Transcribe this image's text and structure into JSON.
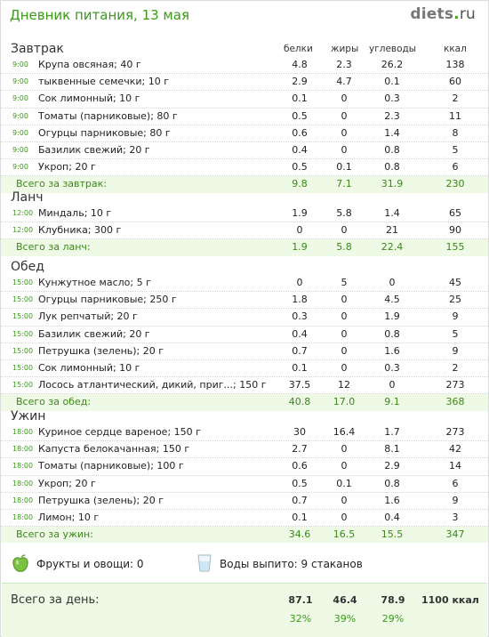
{
  "header": {
    "title": "Дневник питания, 13 мая",
    "logo_main": "diets",
    "logo_dot": ".",
    "logo_tld": "ru"
  },
  "columns": {
    "protein": "белки",
    "fat": "жиры",
    "carbs": "углеводы",
    "kcal": "ккал"
  },
  "sections": [
    {
      "title": "Завтрак",
      "items": [
        {
          "time": "9:00",
          "name": "Крупа овсяная; 40 г",
          "p": "4.8",
          "f": "2.3",
          "c": "26.2",
          "k": "138"
        },
        {
          "time": "9:00",
          "name": "тыквенные семечки; 10 г",
          "p": "2.9",
          "f": "4.7",
          "c": "0.1",
          "k": "60"
        },
        {
          "time": "9:00",
          "name": "Сок лимонный; 10 г",
          "p": "0.1",
          "f": "0",
          "c": "0.3",
          "k": "2"
        },
        {
          "time": "9:00",
          "name": "Томаты (парниковые); 80 г",
          "p": "0.5",
          "f": "0",
          "c": "2.3",
          "k": "11"
        },
        {
          "time": "9:00",
          "name": "Огурцы парниковые; 80 г",
          "p": "0.6",
          "f": "0",
          "c": "1.4",
          "k": "8"
        },
        {
          "time": "9:00",
          "name": "Базилик свежий; 20 г",
          "p": "0.4",
          "f": "0",
          "c": "0.8",
          "k": "5"
        },
        {
          "time": "9:00",
          "name": "Укроп; 20 г",
          "p": "0.5",
          "f": "0.1",
          "c": "0.8",
          "k": "6"
        }
      ],
      "total": {
        "label": "Всего за завтрак:",
        "p": "9.8",
        "f": "7.1",
        "c": "31.9",
        "k": "230"
      }
    },
    {
      "title": "Ланч",
      "items": [
        {
          "time": "12:00",
          "name": "Миндаль; 10 г",
          "p": "1.9",
          "f": "5.8",
          "c": "1.4",
          "k": "65"
        },
        {
          "time": "12:00",
          "name": "Клубника; 300 г",
          "p": "0",
          "f": "0",
          "c": "21",
          "k": "90"
        }
      ],
      "total": {
        "label": "Всего за ланч:",
        "p": "1.9",
        "f": "5.8",
        "c": "22.4",
        "k": "155"
      }
    },
    {
      "title": "Обед",
      "items": [
        {
          "time": "15:00",
          "name": "Кунжутное масло; 5 г",
          "p": "0",
          "f": "5",
          "c": "0",
          "k": "45"
        },
        {
          "time": "15:00",
          "name": "Огурцы парниковые; 250 г",
          "p": "1.8",
          "f": "0",
          "c": "4.5",
          "k": "25"
        },
        {
          "time": "15:00",
          "name": "Лук репчатый; 20 г",
          "p": "0.3",
          "f": "0",
          "c": "1.9",
          "k": "9"
        },
        {
          "time": "15:00",
          "name": "Базилик свежий; 20 г",
          "p": "0.4",
          "f": "0",
          "c": "0.8",
          "k": "5"
        },
        {
          "time": "15:00",
          "name": "Петрушка (зелень); 20 г",
          "p": "0.7",
          "f": "0",
          "c": "1.6",
          "k": "9"
        },
        {
          "time": "15:00",
          "name": "Сок лимонный; 10 г",
          "p": "0.1",
          "f": "0",
          "c": "0.3",
          "k": "2"
        },
        {
          "time": "15:00",
          "name": "Лосось атлантический, дикий, приг...; 150 г",
          "p": "37.5",
          "f": "12",
          "c": "0",
          "k": "273"
        }
      ],
      "total": {
        "label": "Всего за обед:",
        "p": "40.8",
        "f": "17.0",
        "c": "9.1",
        "k": "368"
      }
    },
    {
      "title": "Ужин",
      "items": [
        {
          "time": "18:00",
          "name": "Куриное сердце вареное; 150 г",
          "p": "30",
          "f": "16.4",
          "c": "1.7",
          "k": "273"
        },
        {
          "time": "18:00",
          "name": "Капуста белокачанная; 150 г",
          "p": "2.7",
          "f": "0",
          "c": "8.1",
          "k": "42"
        },
        {
          "time": "18:00",
          "name": "Томаты (парниковые); 100 г",
          "p": "0.6",
          "f": "0",
          "c": "2.9",
          "k": "14"
        },
        {
          "time": "18:00",
          "name": "Укроп; 20 г",
          "p": "0.5",
          "f": "0.1",
          "c": "0.8",
          "k": "6"
        },
        {
          "time": "18:00",
          "name": "Петрушка (зелень); 20 г",
          "p": "0.7",
          "f": "0",
          "c": "1.6",
          "k": "9"
        },
        {
          "time": "18:00",
          "name": "Лимон; 10 г",
          "p": "0.1",
          "f": "0",
          "c": "0.4",
          "k": "3"
        }
      ],
      "total": {
        "label": "Всего за ужин:",
        "p": "34.6",
        "f": "16.5",
        "c": "15.5",
        "k": "347"
      }
    }
  ],
  "extras": {
    "fruits": "Фрукты и овощи: 0",
    "water": "Воды выпито: 9 стаканов"
  },
  "day": {
    "label": "Всего за день:",
    "p": "87.1",
    "f": "46.4",
    "c": "78.9",
    "kcal": "1100 ккал",
    "p_pct": "32%",
    "f_pct": "39%",
    "c_pct": "29%"
  },
  "colors": {
    "green": "#3a9a18",
    "total_bg": "#eef9e6"
  },
  "icons": {
    "fruits": "green-apple-icon",
    "water": "water-glass-icon"
  }
}
